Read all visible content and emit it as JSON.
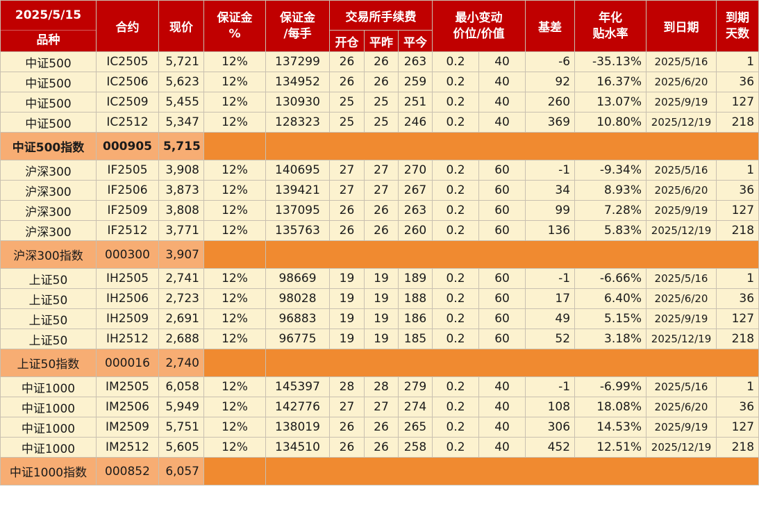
{
  "header": {
    "date": "2025/5/15",
    "variety": "品种",
    "contract": "合约",
    "price": "现价",
    "margin_pct_1": "保证金",
    "margin_pct_2": "%",
    "margin_per_lot_1": "保证金",
    "margin_per_lot_2": "/每手",
    "fee_title": "交易所手续费",
    "fee_open": "开仓",
    "fee_close_yesterday": "平昨",
    "fee_close_today": "平今",
    "tick_1": "最小变动",
    "tick_2": "价位/价值",
    "basis": "基差",
    "annual_1": "年化",
    "annual_2": "贴水率",
    "expiry": "到日期",
    "days_1": "到期",
    "days_2": "天数"
  },
  "groups": [
    {
      "rows": [
        [
          "中证500",
          "IC2505",
          "5,721",
          "12%",
          "137299",
          "26",
          "26",
          "263",
          "0.2",
          "40",
          "-6",
          "-35.13%",
          "2025/5/16",
          "1"
        ],
        [
          "中证500",
          "IC2506",
          "5,623",
          "12%",
          "134952",
          "26",
          "26",
          "259",
          "0.2",
          "40",
          "92",
          "16.37%",
          "2025/6/20",
          "36"
        ],
        [
          "中证500",
          "IC2509",
          "5,455",
          "12%",
          "130930",
          "25",
          "25",
          "251",
          "0.2",
          "40",
          "260",
          "13.07%",
          "2025/9/19",
          "127"
        ],
        [
          "中证500",
          "IC2512",
          "5,347",
          "12%",
          "128323",
          "25",
          "25",
          "246",
          "0.2",
          "40",
          "369",
          "10.80%",
          "2025/12/19",
          "218"
        ]
      ],
      "index": {
        "name": "中证500指数",
        "code": "000905",
        "price": "5,715"
      }
    },
    {
      "rows": [
        [
          "沪深300",
          "IF2505",
          "3,908",
          "12%",
          "140695",
          "27",
          "27",
          "270",
          "0.2",
          "60",
          "-1",
          "-9.34%",
          "2025/5/16",
          "1"
        ],
        [
          "沪深300",
          "IF2506",
          "3,873",
          "12%",
          "139421",
          "27",
          "27",
          "267",
          "0.2",
          "60",
          "34",
          "8.93%",
          "2025/6/20",
          "36"
        ],
        [
          "沪深300",
          "IF2509",
          "3,808",
          "12%",
          "137095",
          "26",
          "26",
          "263",
          "0.2",
          "60",
          "99",
          "7.28%",
          "2025/9/19",
          "127"
        ],
        [
          "沪深300",
          "IF2512",
          "3,771",
          "12%",
          "135763",
          "26",
          "26",
          "260",
          "0.2",
          "60",
          "136",
          "5.83%",
          "2025/12/19",
          "218"
        ]
      ],
      "index": {
        "name": "沪深300指数",
        "code": "000300",
        "price": "3,907"
      }
    },
    {
      "rows": [
        [
          "上证50",
          "IH2505",
          "2,741",
          "12%",
          "98669",
          "19",
          "19",
          "189",
          "0.2",
          "60",
          "-1",
          "-6.66%",
          "2025/5/16",
          "1"
        ],
        [
          "上证50",
          "IH2506",
          "2,723",
          "12%",
          "98028",
          "19",
          "19",
          "188",
          "0.2",
          "60",
          "17",
          "6.40%",
          "2025/6/20",
          "36"
        ],
        [
          "上证50",
          "IH2509",
          "2,691",
          "12%",
          "96883",
          "19",
          "19",
          "186",
          "0.2",
          "60",
          "49",
          "5.15%",
          "2025/9/19",
          "127"
        ],
        [
          "上证50",
          "IH2512",
          "2,688",
          "12%",
          "96775",
          "19",
          "19",
          "185",
          "0.2",
          "60",
          "52",
          "3.18%",
          "2025/12/19",
          "218"
        ]
      ],
      "index": {
        "name": "上证50指数",
        "code": "000016",
        "price": "2,740"
      }
    },
    {
      "rows": [
        [
          "中证1000",
          "IM2505",
          "6,058",
          "12%",
          "145397",
          "28",
          "28",
          "279",
          "0.2",
          "40",
          "-1",
          "-6.99%",
          "2025/5/16",
          "1"
        ],
        [
          "中证1000",
          "IM2506",
          "5,949",
          "12%",
          "142776",
          "27",
          "27",
          "274",
          "0.2",
          "40",
          "108",
          "18.08%",
          "2025/6/20",
          "36"
        ],
        [
          "中证1000",
          "IM2509",
          "5,751",
          "12%",
          "138019",
          "26",
          "26",
          "265",
          "0.2",
          "40",
          "306",
          "14.53%",
          "2025/9/19",
          "127"
        ],
        [
          "中证1000",
          "IM2512",
          "5,605",
          "12%",
          "134510",
          "26",
          "26",
          "258",
          "0.2",
          "40",
          "452",
          "12.51%",
          "2025/12/19",
          "218"
        ]
      ],
      "index": {
        "name": "中证1000指数",
        "code": "000852",
        "price": "6,057"
      }
    }
  ],
  "colors": {
    "header_bg": "#c00000",
    "contract_row_bg": "#fcf2cf",
    "index_row_bg": "#f08a30",
    "index_cell_bg": "#f7ad73"
  }
}
